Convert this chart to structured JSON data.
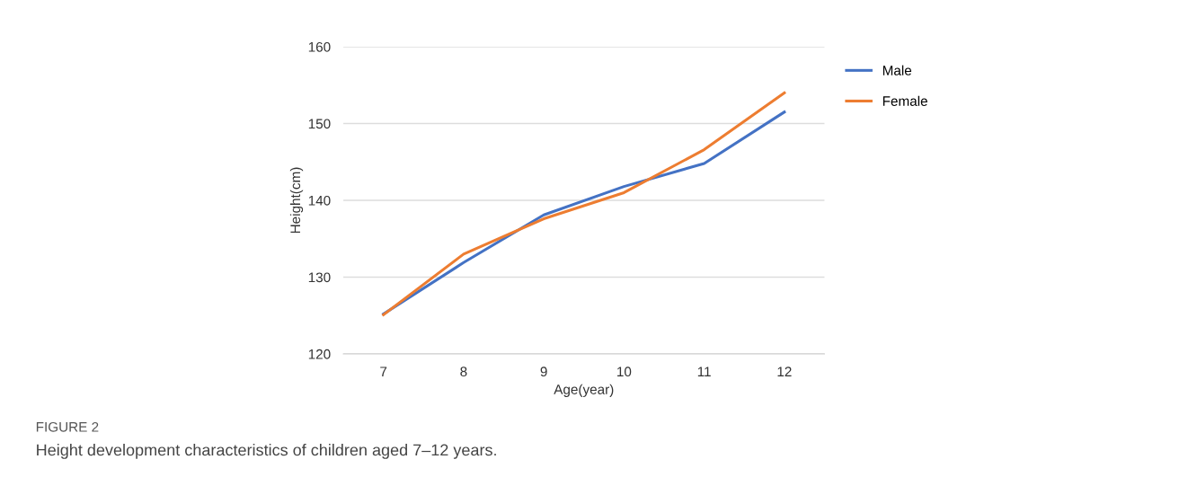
{
  "chart_data": {
    "type": "line",
    "xlabel": "Age(year)",
    "ylabel": "Height(cm)",
    "categories": [
      "7",
      "8",
      "9",
      "10",
      "11",
      "12"
    ],
    "series": [
      {
        "name": "Male",
        "color": "#4472c4",
        "values": [
          125.2,
          131.9,
          138.1,
          141.8,
          144.8,
          151.5
        ]
      },
      {
        "name": "Female",
        "color": "#ed7d31",
        "values": [
          125.1,
          133.0,
          137.6,
          141.0,
          146.6,
          154.0
        ]
      }
    ],
    "ylim": [
      120,
      160
    ],
    "yticks": [
      120,
      130,
      140,
      150,
      160
    ],
    "grid": "y",
    "legend": "top right",
    "marker": "none",
    "line_style": "solid",
    "annotations": [
      "FIGURE 2",
      "Height development characteristics of children aged 7–12 years."
    ]
  }
}
